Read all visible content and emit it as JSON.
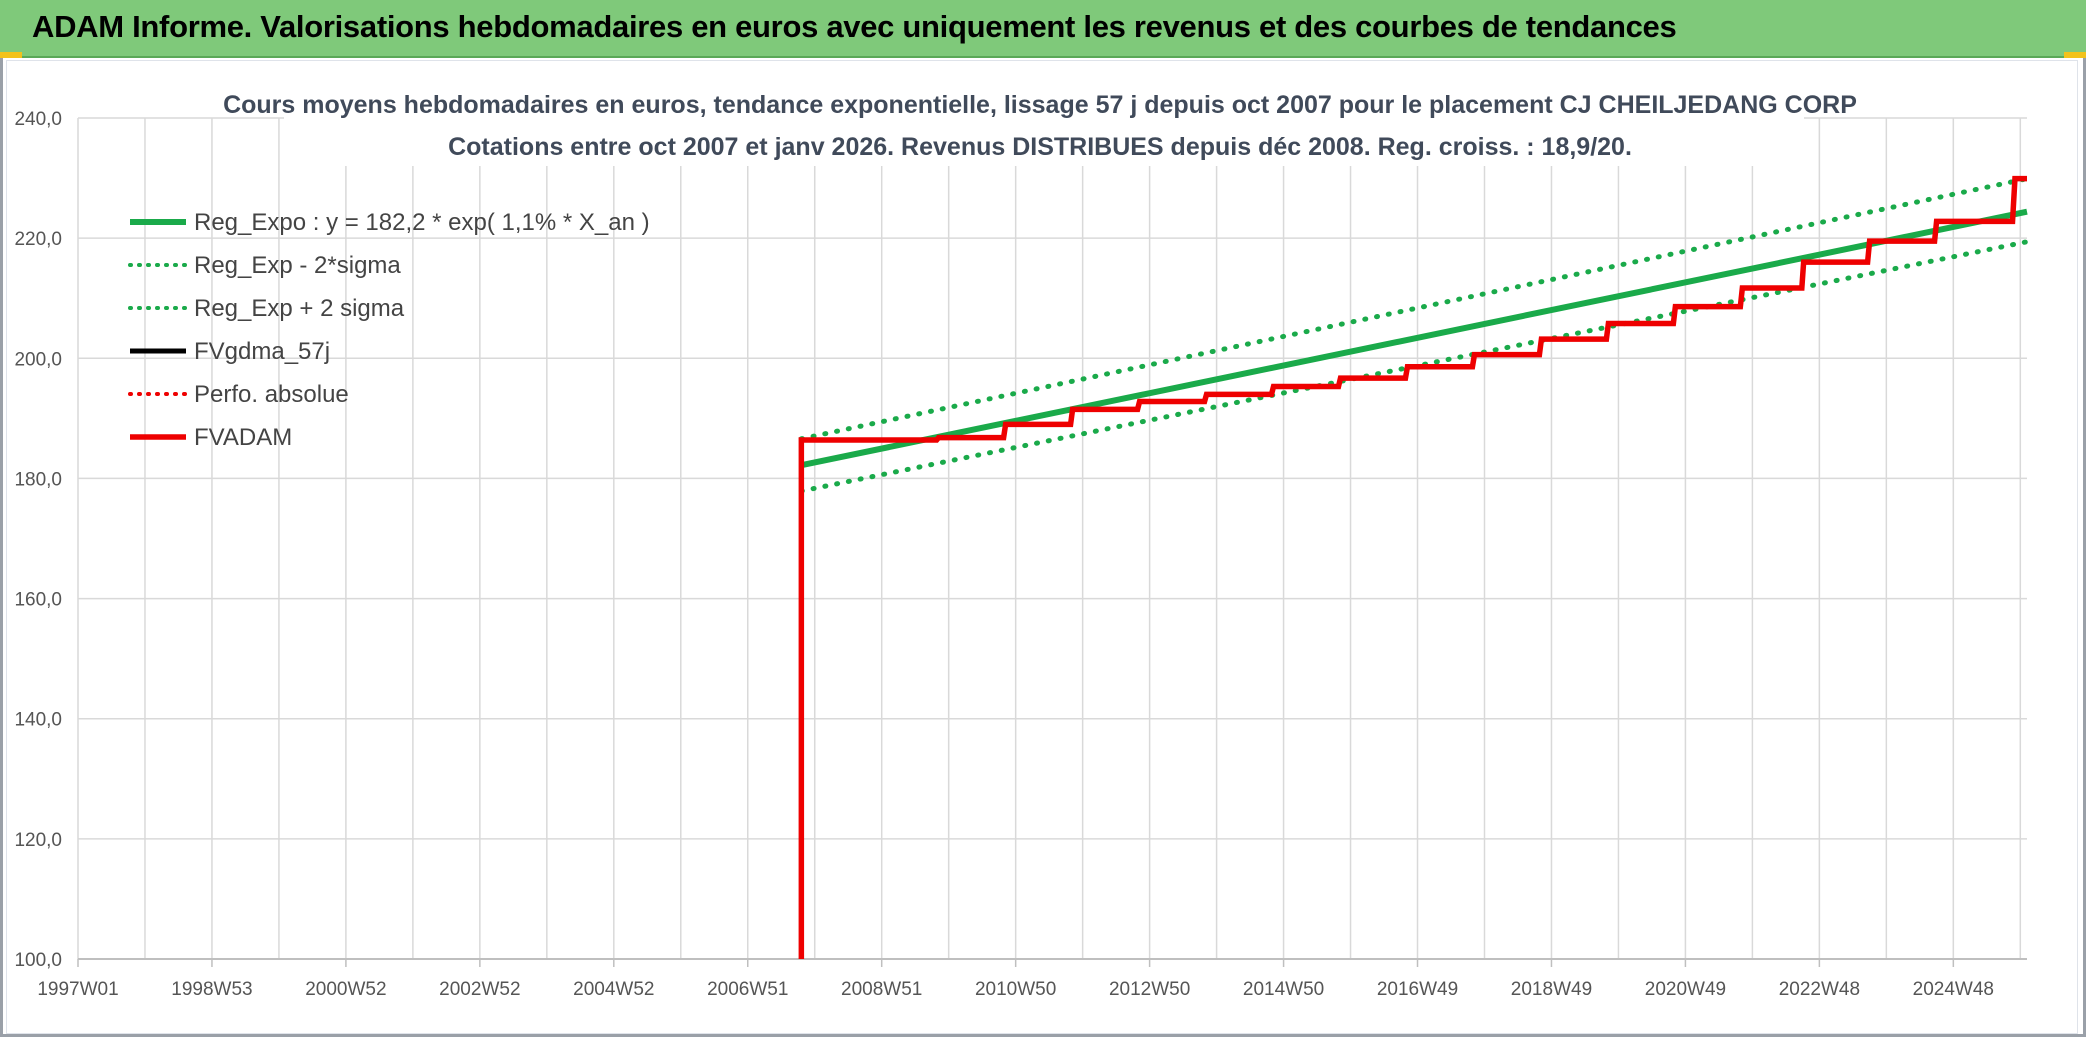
{
  "banner": {
    "title": "ADAM Informe. Valorisations hebdomadaires en euros avec uniquement les revenus et des courbes de tendances"
  },
  "colors": {
    "banner_bg": "#7fc97a",
    "trend_green": "#1aaa4a",
    "fvgdma_black": "#000000",
    "fvadam_red": "#ee0000",
    "grid": "#d9d9d9"
  },
  "chart_data": {
    "type": "line",
    "title": "Cours moyens hebdomadaires en euros, tendance exponentielle, lissage 57 j depuis oct 2007 pour le placement CJ CHEILJEDANG CORP",
    "subtitle": "Cotations entre oct 2007 et janv 2026. Revenus DISTRIBUES depuis déc 2008. Reg. croiss. : 18,9/20.",
    "xlabel": "",
    "ylabel": "",
    "x_range": [
      1997.0,
      2026.1
    ],
    "ylim": [
      100,
      240
    ],
    "y_ticks": [
      "240,0",
      "220,0",
      "200,0",
      "180,0",
      "160,0",
      "140,0",
      "120,0",
      "100,0"
    ],
    "y_tick_values": [
      240,
      220,
      200,
      180,
      160,
      140,
      120,
      100
    ],
    "x_ticks": [
      {
        "label": "1997W01",
        "x": 1997.0
      },
      {
        "label": "1998W53",
        "x": 1999.0
      },
      {
        "label": "2000W52",
        "x": 2001.0
      },
      {
        "label": "2002W52",
        "x": 2003.0
      },
      {
        "label": "2004W52",
        "x": 2005.0
      },
      {
        "label": "2006W51",
        "x": 2007.0
      },
      {
        "label": "2008W51",
        "x": 2009.0
      },
      {
        "label": "2010W50",
        "x": 2011.0
      },
      {
        "label": "2012W50",
        "x": 2013.0
      },
      {
        "label": "2014W50",
        "x": 2015.0
      },
      {
        "label": "2016W49",
        "x": 2017.0
      },
      {
        "label": "2018W49",
        "x": 2019.0
      },
      {
        "label": "2020W49",
        "x": 2021.0
      },
      {
        "label": "2022W48",
        "x": 2023.0
      },
      {
        "label": "2024W48",
        "x": 2025.0
      }
    ],
    "legend_placement": "top-left",
    "grid": true,
    "series": [
      {
        "name": "Reg_Expo : y = 182,2 * exp( 1,1% *  X_an )",
        "style": "solid",
        "color": "#1aaa4a",
        "points": [
          [
            2007.8,
            182.2
          ],
          [
            2026.1,
            224.4
          ]
        ]
      },
      {
        "name": "Reg_Exp - 2*sigma",
        "style": "dotted",
        "color": "#1aaa4a",
        "points": [
          [
            2007.8,
            177.9
          ],
          [
            2026.1,
            219.4
          ]
        ]
      },
      {
        "name": "Reg_Exp + 2 sigma",
        "style": "dotted",
        "color": "#1aaa4a",
        "points": [
          [
            2007.8,
            186.6
          ],
          [
            2026.1,
            229.9
          ]
        ]
      },
      {
        "name": "FVgdma_57j",
        "style": "solid",
        "color": "#000000",
        "points": [
          [
            2007.8,
            186.4
          ],
          [
            2009.0,
            186.4
          ],
          [
            2010.0,
            186.8
          ],
          [
            2011.0,
            189.0
          ],
          [
            2012.0,
            191.5
          ],
          [
            2013.0,
            192.8
          ],
          [
            2014.0,
            194.0
          ],
          [
            2015.0,
            195.3
          ],
          [
            2016.0,
            196.7
          ],
          [
            2017.0,
            198.6
          ],
          [
            2018.0,
            200.6
          ],
          [
            2019.0,
            203.2
          ],
          [
            2020.0,
            205.8
          ],
          [
            2021.0,
            208.6
          ],
          [
            2022.0,
            211.7
          ],
          [
            2022.9,
            216.0
          ],
          [
            2023.9,
            219.5
          ],
          [
            2024.9,
            222.8
          ],
          [
            2026.1,
            229.9
          ]
        ]
      },
      {
        "name": "Perfo. absolue",
        "style": "dotted",
        "color": "#ee0000",
        "points": []
      },
      {
        "name": "FVADAM",
        "style": "solid-thick",
        "color": "#ee0000",
        "points": [
          [
            2007.8,
            100.0
          ],
          [
            2007.8,
            186.4
          ],
          [
            2009.0,
            186.4
          ],
          [
            2010.0,
            186.8
          ],
          [
            2011.0,
            189.0
          ],
          [
            2012.0,
            191.5
          ],
          [
            2013.0,
            192.8
          ],
          [
            2014.0,
            194.0
          ],
          [
            2015.0,
            195.3
          ],
          [
            2016.0,
            196.7
          ],
          [
            2017.0,
            198.6
          ],
          [
            2018.0,
            200.6
          ],
          [
            2019.0,
            203.2
          ],
          [
            2020.0,
            205.8
          ],
          [
            2021.0,
            208.6
          ],
          [
            2022.0,
            211.7
          ],
          [
            2022.9,
            216.0
          ],
          [
            2023.9,
            219.5
          ],
          [
            2024.9,
            222.8
          ],
          [
            2026.1,
            229.9
          ]
        ]
      }
    ]
  }
}
